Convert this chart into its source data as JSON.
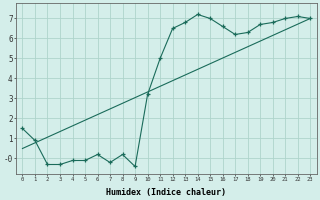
{
  "xlabel": "Humidex (Indice chaleur)",
  "ylabel": "",
  "bg_color": "#d4eeea",
  "grid_color": "#aed4cc",
  "line_color": "#1a6b5a",
  "xlim": [
    -0.5,
    23.5
  ],
  "ylim": [
    -0.75,
    7.75
  ],
  "xticks": [
    0,
    1,
    2,
    3,
    4,
    5,
    6,
    7,
    8,
    9,
    10,
    11,
    12,
    13,
    14,
    15,
    16,
    17,
    18,
    19,
    20,
    21,
    22,
    23
  ],
  "yticks": [
    0,
    1,
    2,
    3,
    4,
    5,
    6,
    7
  ],
  "ytick_labels": [
    "-0",
    "1",
    "2",
    "3",
    "4",
    "5",
    "6",
    "7"
  ],
  "data_x": [
    0,
    1,
    2,
    3,
    4,
    5,
    6,
    7,
    8,
    9,
    10,
    11,
    12,
    13,
    14,
    15,
    16,
    17,
    18,
    19,
    20,
    21,
    22,
    23
  ],
  "data_y": [
    1.5,
    0.9,
    -0.3,
    -0.3,
    -0.1,
    -0.1,
    0.2,
    -0.2,
    0.2,
    -0.4,
    3.2,
    5.0,
    6.5,
    6.8,
    7.2,
    7.0,
    6.6,
    6.2,
    6.3,
    6.7,
    6.8,
    7.0,
    7.1,
    7.0
  ],
  "trend_x": [
    0,
    23
  ],
  "trend_y": [
    0.5,
    7.0
  ]
}
